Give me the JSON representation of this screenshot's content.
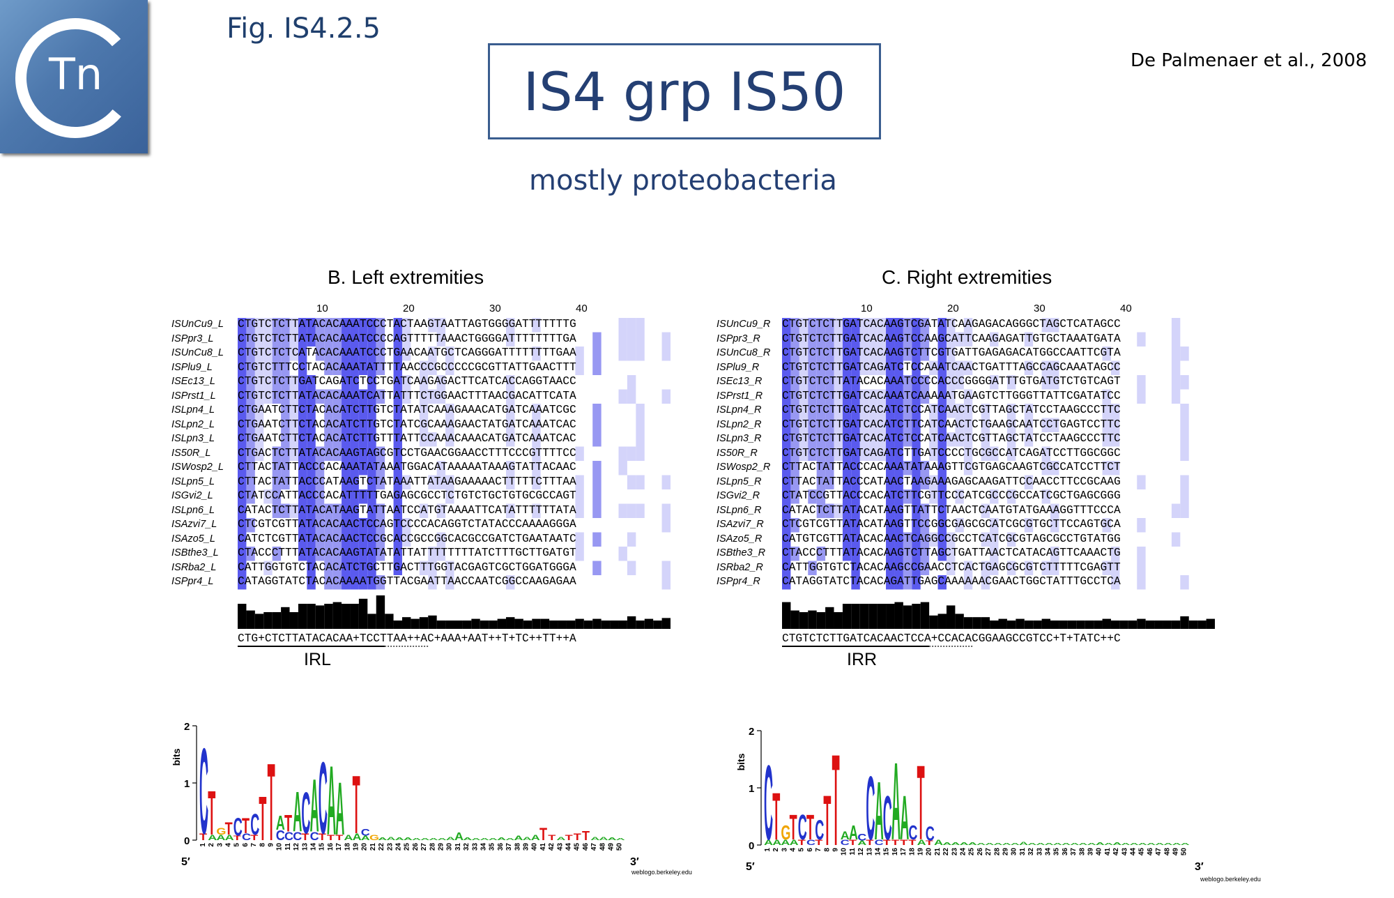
{
  "logo": {
    "text": "Tn",
    "alt": "Transposon Registry logo"
  },
  "figure_label": "Fig. IS4.2.5",
  "reference": "De Palmenaer et al., 2008",
  "title": "IS4 grp IS50",
  "subtitle": "mostly proteobacteria",
  "left_panel": {
    "title": "B. Left extremities",
    "ruler_labels": [
      "10",
      "20",
      "30",
      "40"
    ],
    "names": [
      "ISUnCu9_L",
      "ISPpr3_L",
      "ISUnCu8_L",
      "ISPlu9_L",
      "ISEc13_L",
      "ISPrst1_L",
      "ISLpn4_L",
      "ISLpn2_L",
      "ISLpn3_L",
      "IS50R_L",
      "ISWosp2_L",
      "ISLpn5_L",
      "ISGvi2_L",
      "ISLpn6_L",
      "ISAzvi7_L",
      "ISAzo5_L",
      "ISBthe3_L",
      "ISRba2_L",
      "ISPpr4_L"
    ],
    "sequences": [
      "CTGTCTCTTATACACAAATCCCTACTAAGTAATTAGTGGGGATTTTTTTG",
      "CTGTCTCTTATACACAAATCCCCAGTTTTTAAACTGGGGATTTTTTTTGA",
      "CTGTCTCTCATACACAAATCCCTGAACAATGCTCAGGGATTTTTTTTGAA",
      "CTGTCTTTCCTACACAAATATTTTAACCCGCCCCCGCGTTATTGAACTTT",
      "CTGTCTCTTGATCAGATCTCCTGATCAAGAGACTTCATCACCAGGTAACC",
      "CTGTCTCTTATACACAAATCATTATTTCTGGAACTTTAACGACATTCATA",
      "CTGAATCTTCTACACATCTTGTCTATATCAAAGAAACATGATCAAATCGC",
      "CTGAATCTTCTACACATCTTGTCTATCGCAAAGAACTATGATCAAATCAC",
      "CTGAATCTTCTACACATCTTGTTTATTCCAAACAAACATGATCAAATCAC",
      "CTGACTCTTATACACAAGTAGCGTCCTGAACGGAACCTTTCCCGTTTTCC",
      "CTTACTATTACCCACAAATATAAATGGACATAAAAATAAAGTATTACAAC",
      "CTTACTATTACCCATAAGTCTATAAATTATAAGAAAAACTTTTTCTTTAA",
      "CTATCCATTACCCACATTTTTGAGAGCGCCTCTGTCTGCTGTGCGCCAGT",
      "CATACTCTTATACATAAGTATTAATCCATGTAAAATTCATATTTTTTATA",
      "CTCGTCGTTATACACAACTCCAGTCCCCACAGGTCTATACCCAAAAGGGA",
      "CATCTCGTTATACACAACTCCGCACCGCCGGCACGCCGATCTGAATAATC",
      "CTACCCTTTATACACAAGTATATATTATTTTTTTTATCTTTGCTTGATGT",
      "CATTGGTGTCTACACATCTGCTTGACTTTGGTACGAGTCGCTGGATGGGA",
      "CATAGGTATCTACACAAAATGGTTACGAATTAACCAATCGGCCAAGAGAA"
    ],
    "consensus": "CTG+CTCTTATACACAA+TCCTTAA++AC+AAA+AAT++T+TC++TT++A",
    "ir_label": "IRL",
    "conservation": [
      0.6,
      0.44,
      0.36,
      0.4,
      0.4,
      0.52,
      0.4,
      0.6,
      0.6,
      0.56,
      0.6,
      0.64,
      0.6,
      0.6,
      0.72,
      0.36,
      0.8,
      0.36,
      0.2,
      0.28,
      0.24,
      0.28,
      0.32,
      0.2,
      0.2,
      0.2,
      0.2,
      0.24,
      0.2,
      0.2,
      0.24,
      0.28,
      0.24,
      0.2,
      0.24,
      0.24,
      0.2,
      0.2,
      0.2,
      0.24,
      0.2,
      0.24,
      0.2,
      0.2,
      0.2,
      0.3,
      0.2,
      0.24,
      0.2,
      0.26
    ]
  },
  "right_panel": {
    "title": "C. Right extremities",
    "ruler_labels": [
      "10",
      "20",
      "30",
      "40"
    ],
    "names": [
      "ISUnCu9_R",
      "ISPpr3_R",
      "ISUnCu8_R",
      "ISPlu9_R",
      "ISEc13_R",
      "ISPrst1_R",
      "ISLpn4_R",
      "ISLpn2_R",
      "ISLpn3_R",
      "IS50R_R",
      "ISWosp2_R",
      "ISLpn5_R",
      "ISGvi2_R",
      "ISLpn6_R",
      "ISAzvi7_R",
      "ISAzo5_R",
      "ISBthe3_R",
      "ISRba2_R",
      "ISPpr4_R"
    ],
    "sequences": [
      "CTGTCTCTTGATCACAAGTCGATATCAAGAGACAGGGCTAGCTCATAGCC",
      "CTGTCTCTTGATCACAAGTCCAAGCATTCAAGAGATTGTGCTAAATGATA",
      "CTGTCTCTTGATCACAAGTCTTCGTGATTGAGAGACATGGCCAATTCGTA",
      "CTGTCTCTTGATCAGATCTCCAAATCAACTGATTTAGCCAGCAAATAGCC",
      "CTGTCTCTTATACACAAATCCCCACCCGGGGATTTGTGATGTCTGTCAGT",
      "CTGTCTCTTGATCACAAATCAAAAATGAAGTCTTGGGTTATTCGATATCC",
      "CTGTCTCTTGATCACATCTCCATCAACTCGTTAGCTATCCTAAGCCCTTC",
      "CTGTCTCTTGATCACATCTTCATCAACTCTGAAGCAATCCTGAGTCCTTC",
      "CTGTCTCTTGATCACATCTCCATCAACTCGTTAGCTATCCTAAGCCCTTC",
      "CTGTCTCTTGATCAGATCTTGATCCCCTGCGCCATCAGATCCTTGGCGGC",
      "CTTACTATTACCCACAAATATAAAGTTCGTGAGCAAGTCGCCATCCTTCT",
      "CTTACTATTACCCATAACTAAGAAAGAGCAAGATTCCAACCTTCCGCAAG",
      "CTATCCGTTACCCACATCTTCGTTCCCATCGCCCGCCATCGCTGAGCGGG",
      "CATACTCTTATACATAAGTTATTCTAACTCAATGTATGAAAGGTTTCCCA",
      "CTCGTCGTTATACATAAGTTCCGGCGAGCGCATCGCGTGCTTCCAGTGCA",
      "CATGTCGTTATACACAACTCAGGCCGCCTCATCGCGTAGCGCCTGTATGG",
      "CTACCCTTTATACACAAGTCTTAGCTGATTAACTCATACAGTTCAAACTG",
      "CATTGGTGTCTACACAAGCCGAACCTCACTGAGCGCGTCTTTTTCGAGTT",
      "CATAGGTATCTACACAGATTGAGCAAAAAACGAACTGGCTATTTGCCTCA"
    ],
    "consensus": "CTGTCTCTTGATCACAACTCCA+CCACACGGAAGCCGTCC+T+TATC++C",
    "ir_label": "IRR",
    "conservation": [
      0.64,
      0.44,
      0.4,
      0.44,
      0.4,
      0.52,
      0.4,
      0.6,
      0.6,
      0.6,
      0.6,
      0.6,
      0.6,
      0.64,
      0.56,
      0.6,
      0.64,
      0.32,
      0.36,
      0.56,
      0.36,
      0.28,
      0.28,
      0.28,
      0.2,
      0.24,
      0.2,
      0.24,
      0.2,
      0.2,
      0.24,
      0.2,
      0.2,
      0.2,
      0.2,
      0.2,
      0.2,
      0.24,
      0.2,
      0.2,
      0.2,
      0.24,
      0.2,
      0.2,
      0.2,
      0.2,
      0.3,
      0.2,
      0.2,
      0.24
    ]
  },
  "logo_left": {
    "ylabel": "bits",
    "ticks": [
      "0",
      "1",
      "2"
    ],
    "end5": "5′",
    "end3": "3′",
    "credit": "weblogo.berkeley.edu",
    "positions": [
      "1",
      "2",
      "3",
      "4",
      "5",
      "6",
      "7",
      "8",
      "9",
      "10",
      "11",
      "12",
      "13",
      "14",
      "15",
      "16",
      "17",
      "18",
      "19",
      "20",
      "21",
      "22",
      "23",
      "24",
      "25",
      "26",
      "27",
      "28",
      "29",
      "30",
      "31",
      "32",
      "33",
      "34",
      "35",
      "36",
      "37",
      "38",
      "39",
      "40",
      "41",
      "42",
      "43",
      "44",
      "45",
      "46",
      "47",
      "48",
      "49",
      "50"
    ],
    "letters": [
      [
        [
          "C",
          1.55
        ],
        [
          "T",
          0.12
        ]
      ],
      [
        [
          "T",
          0.8
        ],
        [
          "A",
          0.1
        ]
      ],
      [
        [
          "G",
          0.12
        ],
        [
          "A",
          0.1
        ]
      ],
      [
        [
          "T",
          0.22
        ],
        [
          "A",
          0.1
        ]
      ],
      [
        [
          "C",
          0.32
        ],
        [
          "T",
          0.08
        ]
      ],
      [
        [
          "T",
          0.28
        ],
        [
          "C",
          0.12
        ]
      ],
      [
        [
          "C",
          0.38
        ],
        [
          "T",
          0.1
        ]
      ],
      [
        [
          "T",
          0.8
        ]
      ],
      [
        [
          "T",
          1.4
        ]
      ],
      [
        [
          "A",
          0.25
        ],
        [
          "C",
          0.18
        ]
      ],
      [
        [
          "T",
          0.3
        ],
        [
          "C",
          0.15
        ]
      ],
      [
        [
          "A",
          0.72
        ],
        [
          "C",
          0.15
        ]
      ],
      [
        [
          "C",
          0.75
        ],
        [
          "T",
          0.12
        ]
      ],
      [
        [
          "A",
          0.95
        ],
        [
          "C",
          0.15
        ]
      ],
      [
        [
          "C",
          1.3
        ],
        [
          "T",
          0.12
        ]
      ],
      [
        [
          "A",
          1.25
        ],
        [
          "T",
          0.1
        ]
      ],
      [
        [
          "A",
          0.95
        ],
        [
          "T",
          0.1
        ]
      ],
      [
        [
          "A",
          0.1
        ]
      ],
      [
        [
          "T",
          1.05
        ],
        [
          "A",
          0.12
        ]
      ],
      [
        [
          "C",
          0.12
        ],
        [
          "A",
          0.08
        ]
      ],
      [
        [
          "G",
          0.1
        ]
      ],
      [
        [
          "A",
          0.05
        ]
      ],
      [
        [
          "A",
          0.06
        ]
      ],
      [
        [
          "A",
          0.05
        ]
      ],
      [
        [
          "A",
          0.05
        ]
      ],
      [
        [
          "A",
          0.04
        ]
      ],
      [
        [
          "A",
          0.04
        ]
      ],
      [
        [
          "A",
          0.04
        ]
      ],
      [
        [
          "A",
          0.04
        ]
      ],
      [
        [
          "A",
          0.06
        ]
      ],
      [
        [
          "A",
          0.14
        ]
      ],
      [
        [
          "A",
          0.05
        ]
      ],
      [
        [
          "A",
          0.04
        ]
      ],
      [
        [
          "A",
          0.04
        ]
      ],
      [
        [
          "A",
          0.04
        ]
      ],
      [
        [
          "A",
          0.05
        ]
      ],
      [
        [
          "A",
          0.04
        ]
      ],
      [
        [
          "A",
          0.08
        ]
      ],
      [
        [
          "A",
          0.06
        ]
      ],
      [
        [
          "A",
          0.1
        ]
      ],
      [
        [
          "T",
          0.22
        ]
      ],
      [
        [
          "T",
          0.1
        ]
      ],
      [
        [
          "A",
          0.06
        ]
      ],
      [
        [
          "T",
          0.1
        ]
      ],
      [
        [
          "T",
          0.12
        ]
      ],
      [
        [
          "T",
          0.16
        ]
      ],
      [
        [
          "A",
          0.06
        ]
      ],
      [
        [
          "A",
          0.06
        ]
      ],
      [
        [
          "A",
          0.05
        ]
      ],
      [
        [
          "A",
          0.04
        ]
      ]
    ]
  },
  "logo_right": {
    "ylabel": "bits",
    "ticks": [
      "0",
      "1",
      "2"
    ],
    "end5": "5′",
    "end3": "3′",
    "credit": "weblogo.berkeley.edu",
    "positions": [
      "1",
      "2",
      "3",
      "4",
      "5",
      "6",
      "7",
      "8",
      "9",
      "10",
      "11",
      "12",
      "13",
      "14",
      "15",
      "16",
      "17",
      "18",
      "19",
      "20",
      "21",
      "22",
      "23",
      "24",
      "25",
      "26",
      "27",
      "28",
      "29",
      "30",
      "31",
      "32",
      "33",
      "34",
      "35",
      "36",
      "37",
      "38",
      "39",
      "40",
      "41",
      "42",
      "43",
      "44",
      "45",
      "46",
      "47",
      "48",
      "49",
      "50"
    ],
    "letters": [
      [
        [
          "C",
          1.35
        ],
        [
          "A",
          0.1
        ]
      ],
      [
        [
          "T",
          0.85
        ],
        [
          "A",
          0.1
        ]
      ],
      [
        [
          "G",
          0.25
        ],
        [
          "A",
          0.1
        ]
      ],
      [
        [
          "T",
          0.45
        ],
        [
          "A",
          0.1
        ]
      ],
      [
        [
          "C",
          0.45
        ],
        [
          "T",
          0.1
        ]
      ],
      [
        [
          "T",
          0.45
        ],
        [
          "C",
          0.1
        ]
      ],
      [
        [
          "C",
          0.35
        ],
        [
          "T",
          0.1
        ]
      ],
      [
        [
          "T",
          0.9
        ]
      ],
      [
        [
          "T",
          1.65
        ]
      ],
      [
        [
          "A",
          0.15
        ],
        [
          "C",
          0.1
        ]
      ],
      [
        [
          "A",
          0.25
        ],
        [
          "T",
          0.1
        ]
      ],
      [
        [
          "C",
          0.12
        ],
        [
          "A",
          0.08
        ]
      ],
      [
        [
          "C",
          1.15
        ],
        [
          "T",
          0.1
        ]
      ],
      [
        [
          "A",
          1.05
        ],
        [
          "C",
          0.1
        ]
      ],
      [
        [
          "C",
          0.8
        ],
        [
          "T",
          0.1
        ]
      ],
      [
        [
          "A",
          1.4
        ],
        [
          "T",
          0.1
        ]
      ],
      [
        [
          "A",
          0.8
        ],
        [
          "T",
          0.1
        ]
      ],
      [
        [
          "C",
          0.25
        ],
        [
          "T",
          0.1
        ]
      ],
      [
        [
          "T",
          1.35
        ],
        [
          "A",
          0.1
        ]
      ],
      [
        [
          "C",
          0.25
        ],
        [
          "T",
          0.08
        ]
      ],
      [
        [
          "A",
          0.1
        ]
      ],
      [
        [
          "A",
          0.05
        ]
      ],
      [
        [
          "A",
          0.05
        ]
      ],
      [
        [
          "A",
          0.05
        ]
      ],
      [
        [
          "A",
          0.05
        ]
      ],
      [
        [
          "A",
          0.04
        ]
      ],
      [
        [
          "A",
          0.04
        ]
      ],
      [
        [
          "A",
          0.04
        ]
      ],
      [
        [
          "A",
          0.04
        ]
      ],
      [
        [
          "A",
          0.04
        ]
      ],
      [
        [
          "A",
          0.06
        ]
      ],
      [
        [
          "A",
          0.04
        ]
      ],
      [
        [
          "A",
          0.04
        ]
      ],
      [
        [
          "A",
          0.04
        ]
      ],
      [
        [
          "A",
          0.04
        ]
      ],
      [
        [
          "A",
          0.04
        ]
      ],
      [
        [
          "A",
          0.04
        ]
      ],
      [
        [
          "A",
          0.04
        ]
      ],
      [
        [
          "A",
          0.04
        ]
      ],
      [
        [
          "A",
          0.05
        ]
      ],
      [
        [
          "A",
          0.04
        ]
      ],
      [
        [
          "A",
          0.05
        ]
      ],
      [
        [
          "A",
          0.04
        ]
      ],
      [
        [
          "A",
          0.04
        ]
      ],
      [
        [
          "A",
          0.04
        ]
      ],
      [
        [
          "A",
          0.04
        ]
      ],
      [
        [
          "A",
          0.04
        ]
      ],
      [
        [
          "A",
          0.04
        ]
      ],
      [
        [
          "A",
          0.04
        ]
      ],
      [
        [
          "A",
          0.04
        ]
      ]
    ]
  },
  "nucleotide_colors": {
    "A": "#22aa22",
    "C": "#2233cc",
    "G": "#f0a500",
    "T": "#dd1111"
  },
  "shade_colors": {
    "high": "#5a5aee",
    "medium": "#9898f2",
    "low": "#d4d4fa"
  }
}
